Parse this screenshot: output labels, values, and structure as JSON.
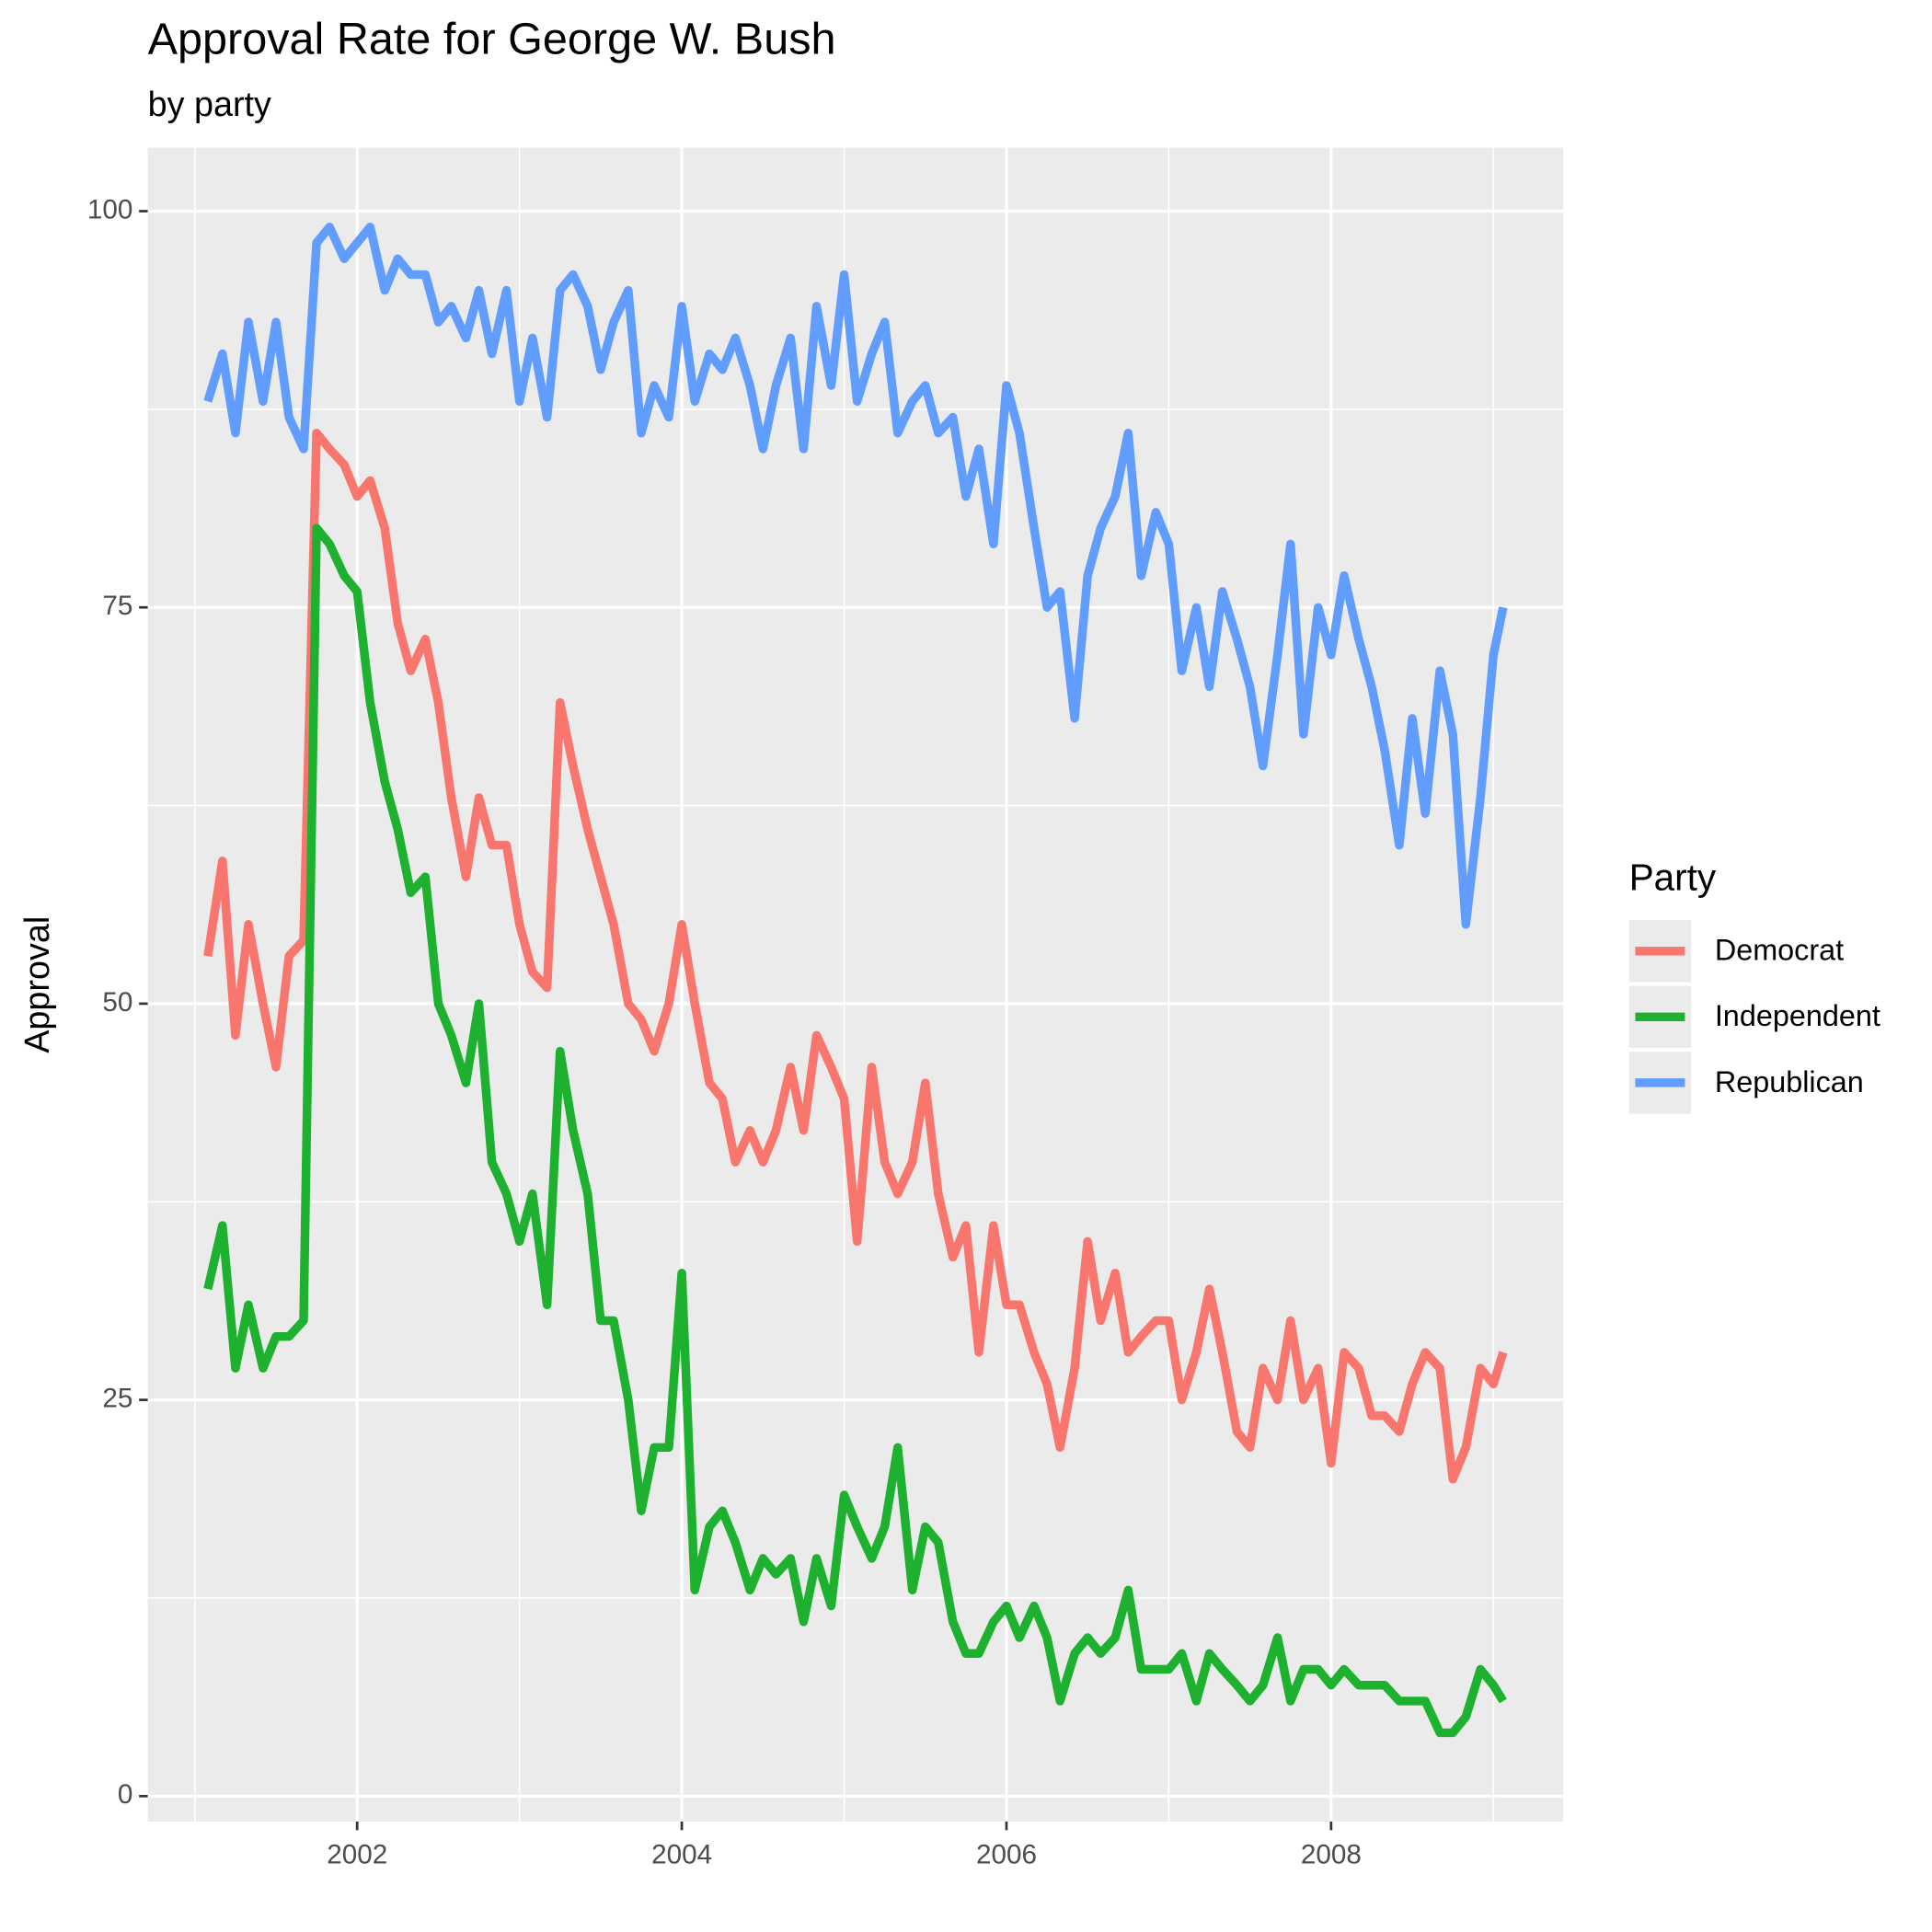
{
  "chart_data": {
    "type": "line",
    "title": "Approval Rate for George W. Bush",
    "subtitle": "by party",
    "y_label": "Approval",
    "legend_title": "Party",
    "legend_position": "right",
    "grid": true,
    "xlim": [
      2000.71,
      2009.43
    ],
    "xticks": [
      2002,
      2004,
      2006,
      2008
    ],
    "ylim": [
      -1.6,
      104
    ],
    "yticks": [
      0,
      25,
      50,
      75,
      100
    ],
    "x": [
      2001.08,
      2001.17,
      2001.25,
      2001.33,
      2001.42,
      2001.5,
      2001.58,
      2001.67,
      2001.75,
      2001.83,
      2001.92,
      2002.0,
      2002.08,
      2002.17,
      2002.25,
      2002.33,
      2002.42,
      2002.5,
      2002.58,
      2002.67,
      2002.75,
      2002.83,
      2002.92,
      2003.0,
      2003.08,
      2003.17,
      2003.25,
      2003.33,
      2003.42,
      2003.5,
      2003.58,
      2003.67,
      2003.75,
      2003.83,
      2003.92,
      2004.0,
      2004.08,
      2004.17,
      2004.25,
      2004.33,
      2004.42,
      2004.5,
      2004.58,
      2004.67,
      2004.75,
      2004.83,
      2004.92,
      2005.0,
      2005.08,
      2005.17,
      2005.25,
      2005.33,
      2005.42,
      2005.5,
      2005.58,
      2005.67,
      2005.75,
      2005.83,
      2005.92,
      2006.0,
      2006.08,
      2006.17,
      2006.25,
      2006.33,
      2006.42,
      2006.5,
      2006.58,
      2006.67,
      2006.75,
      2006.83,
      2006.92,
      2007.0,
      2007.08,
      2007.17,
      2007.25,
      2007.33,
      2007.42,
      2007.5,
      2007.58,
      2007.67,
      2007.75,
      2007.83,
      2007.92,
      2008.0,
      2008.08,
      2008.17,
      2008.25,
      2008.33,
      2008.42,
      2008.5,
      2008.58,
      2008.67,
      2008.75,
      2008.83,
      2008.92,
      2009.0,
      2009.06
    ],
    "series": [
      {
        "name": "Democrat",
        "color": "#F8766D",
        "values": [
          53,
          59,
          48,
          55,
          50,
          46,
          53,
          54,
          86,
          85,
          84,
          82,
          83,
          80,
          74,
          71,
          73,
          69,
          63,
          58,
          63,
          60,
          60,
          55,
          52,
          51,
          69,
          65,
          61,
          58,
          55,
          50,
          49,
          47,
          50,
          55,
          50,
          45,
          44,
          40,
          42,
          40,
          42,
          46,
          42,
          48,
          46,
          44,
          35,
          46,
          40,
          38,
          40,
          45,
          38,
          34,
          36,
          28,
          36,
          31,
          31,
          28,
          26,
          22,
          27,
          35,
          30,
          33,
          28,
          29,
          30,
          30,
          25,
          28,
          32,
          28,
          23,
          22,
          27,
          25,
          30,
          25,
          27,
          21,
          28,
          27,
          24,
          24,
          23,
          26,
          28,
          27,
          20,
          22,
          27,
          26,
          28
        ]
      },
      {
        "name": "Independent",
        "color": "#1DB12F",
        "values": [
          32,
          36,
          27,
          31,
          27,
          29,
          29,
          30,
          80,
          79,
          77,
          76,
          69,
          64,
          61,
          57,
          58,
          50,
          48,
          45,
          50,
          40,
          38,
          35,
          38,
          31,
          47,
          42,
          38,
          30,
          30,
          25,
          18,
          22,
          22,
          33,
          13,
          17,
          18,
          16,
          13,
          15,
          14,
          15,
          11,
          15,
          12,
          19,
          17,
          15,
          17,
          22,
          13,
          17,
          16,
          11,
          9,
          9,
          11,
          12,
          10,
          12,
          10,
          6,
          9,
          10,
          9,
          10,
          13,
          8,
          8,
          8,
          9,
          6,
          9,
          8,
          7,
          6,
          7,
          10,
          6,
          8,
          8,
          7,
          8,
          7,
          7,
          7,
          6,
          6,
          6,
          4,
          4,
          5,
          8,
          7,
          6
        ]
      },
      {
        "name": "Republican",
        "color": "#619CFF",
        "values": [
          88,
          91,
          86,
          93,
          88,
          93,
          87,
          85,
          98,
          99,
          97,
          98,
          99,
          95,
          97,
          96,
          96,
          93,
          94,
          92,
          95,
          91,
          95,
          88,
          92,
          87,
          95,
          96,
          94,
          90,
          93,
          95,
          86,
          89,
          87,
          94,
          88,
          91,
          90,
          92,
          89,
          85,
          89,
          92,
          85,
          94,
          89,
          96,
          88,
          91,
          93,
          86,
          88,
          89,
          86,
          87,
          82,
          85,
          79,
          89,
          86,
          80,
          75,
          76,
          68,
          77,
          80,
          82,
          86,
          77,
          81,
          79,
          71,
          75,
          70,
          76,
          73,
          70,
          65,
          72,
          79,
          67,
          75,
          72,
          77,
          73,
          70,
          66,
          60,
          68,
          62,
          71,
          67,
          55,
          63,
          72,
          75
        ]
      }
    ]
  }
}
